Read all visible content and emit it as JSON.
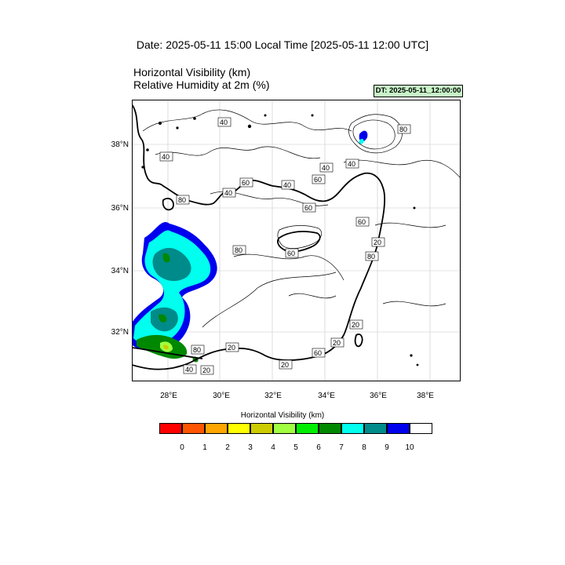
{
  "header": {
    "date_line": "Date: 2025-05-11  15:00 Local Time [2025-05-11  12:00 UTC]",
    "var_line_1": "Horizontal Visibility   (km)",
    "var_line_2": "Relative Humidity at 2m   (%)",
    "dt_badge": "DT: 2025-05-11_12:00:00"
  },
  "axes": {
    "lat_labels": [
      "38°N",
      "36°N",
      "34°N",
      "32°N"
    ],
    "lon_labels": [
      "28°E",
      "30°E",
      "32°E",
      "34°E",
      "36°E",
      "38°E"
    ]
  },
  "contour_labels": [
    "40",
    "40",
    "60",
    "40",
    "40",
    "40",
    "40",
    "80",
    "60",
    "80",
    "60",
    "60",
    "20",
    "80",
    "80",
    "20",
    "60",
    "20",
    "20",
    "80",
    "20",
    "40",
    "20",
    "60"
  ],
  "legend": {
    "title": "Horizontal Visibility  (km)",
    "ticks": [
      "0",
      "1",
      "2",
      "3",
      "4",
      "5",
      "6",
      "7",
      "8",
      "9",
      "10"
    ],
    "colors": [
      "#ff0000",
      "#ff5500",
      "#ffa500",
      "#ffff00",
      "#cccc00",
      "#a0ff40",
      "#00ee00",
      "#008800",
      "#00ffee",
      "#008b8b",
      "#0000ee",
      "#ffffff"
    ]
  }
}
